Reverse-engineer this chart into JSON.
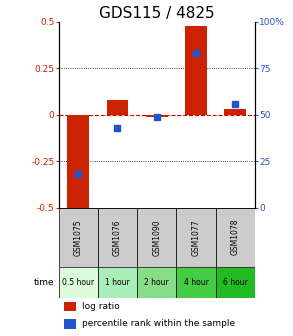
{
  "title": "GDS115 / 4825",
  "samples": [
    "GSM1075",
    "GSM1076",
    "GSM1090",
    "GSM1077",
    "GSM1078"
  ],
  "time_labels": [
    "0.5 hour",
    "1 hour",
    "2 hour",
    "4 hour",
    "6 hour"
  ],
  "time_colors": [
    "#ddfcdd",
    "#aaeebb",
    "#88dd88",
    "#44cc44",
    "#22bb22"
  ],
  "log_ratios": [
    -0.52,
    0.08,
    -0.01,
    0.48,
    0.03
  ],
  "percentile_ranks": [
    18,
    43,
    49,
    83,
    56
  ],
  "bar_color": "#cc2200",
  "dot_color": "#2255cc",
  "ylim_left": [
    -0.5,
    0.5
  ],
  "ylim_right": [
    0,
    100
  ],
  "yticks_left": [
    -0.5,
    -0.25,
    0,
    0.25,
    0.5
  ],
  "yticks_right": [
    0,
    25,
    50,
    75,
    100
  ],
  "ytick_labels_left": [
    "-0.5",
    "-0.25",
    "0",
    "0.25",
    "0.5"
  ],
  "ytick_labels_right": [
    "0",
    "25",
    "50",
    "75",
    "100%"
  ],
  "bar_width": 0.55,
  "title_fontsize": 11,
  "legend_bar_label": "log ratio",
  "legend_dot_label": "percentile rank within the sample",
  "time_row_label": "time",
  "sample_bg_color": "#cccccc"
}
